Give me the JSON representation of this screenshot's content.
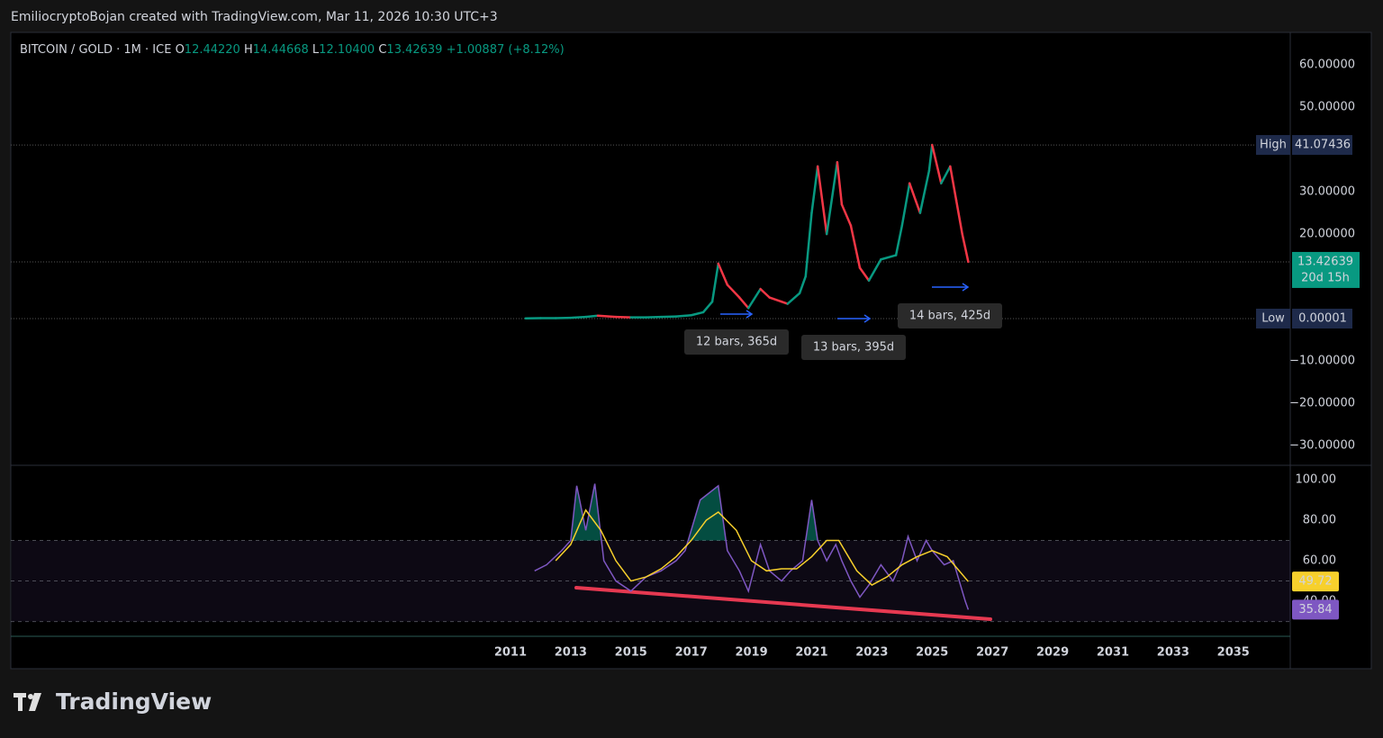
{
  "header": "EmiliocryptoBojan created with TradingView.com, Mar 11, 2026 10:30 UTC+3",
  "legend": {
    "symbol": "BITCOIN / GOLD · 1M · ICE",
    "o_label": "O",
    "open": "12.44220",
    "h_label": "H",
    "high": "14.44668",
    "l_label": "L",
    "low": "12.10400",
    "c_label": "C",
    "close": "13.42639",
    "change": "+1.00887 (+8.12%)"
  },
  "logo": "TradingView",
  "chart_data": [
    {
      "type": "line",
      "xlim": [
        1994.41,
        2036.89
      ],
      "xticks": [
        2011,
        2013,
        2015,
        2017,
        2019,
        2021,
        2023,
        2025,
        2027,
        2029,
        2031,
        2033,
        2035
      ],
      "ylim": [
        -34.7,
        67.7
      ],
      "yticks": [
        {
          "value": 60,
          "label": "60.00000"
        },
        {
          "value": 50,
          "label": "50.00000"
        },
        {
          "value": 30,
          "label": "30.00000"
        },
        {
          "value": 20,
          "label": "20.00000"
        },
        {
          "value": -10,
          "label": "−10.00000"
        },
        {
          "value": -20,
          "label": "−20.00000"
        },
        {
          "value": -30,
          "label": "−30.00000"
        }
      ],
      "up_color": "#089981",
      "down_color": "#f23645",
      "x": [
        2011.5,
        2012.0,
        2012.5,
        2013.0,
        2013.5,
        2013.9,
        2014.5,
        2015.0,
        2015.5,
        2016.0,
        2016.5,
        2017.0,
        2017.4,
        2017.7,
        2017.9,
        2018.2,
        2018.6,
        2018.9,
        2019.3,
        2019.6,
        2020.0,
        2020.2,
        2020.6,
        2020.8,
        2021.0,
        2021.2,
        2021.5,
        2021.85,
        2022.0,
        2022.3,
        2022.6,
        2022.9,
        2023.3,
        2023.8,
        2024.0,
        2024.25,
        2024.6,
        2024.9,
        2025.0,
        2025.3,
        2025.6,
        2025.8,
        2026.0,
        2026.2
      ],
      "values": [
        0.05,
        0.1,
        0.1,
        0.2,
        0.4,
        0.7,
        0.4,
        0.3,
        0.3,
        0.4,
        0.5,
        0.8,
        1.5,
        4,
        13,
        8,
        5,
        2.5,
        7,
        5,
        4,
        3.5,
        6,
        10,
        25,
        36,
        20,
        37,
        27,
        22,
        12,
        9,
        14,
        15,
        22,
        32,
        25,
        35,
        41.07436,
        32,
        36,
        28,
        20,
        13.42639
      ],
      "high": {
        "label": "High",
        "value": 41.07436
      },
      "low": {
        "label": "Low",
        "value": 1e-05
      },
      "countdown": "20d 15h",
      "annotations": [
        "12 bars, 365d",
        "13 bars, 395d",
        "14 bars, 425d"
      ]
    },
    {
      "type": "line",
      "xlim": [
        1994.41,
        2036.89
      ],
      "ylim": [
        22.7,
        107.1
      ],
      "yticks": [
        {
          "value": 100,
          "label": "100.00"
        },
        {
          "value": 80,
          "label": "80.00"
        },
        {
          "value": 60,
          "label": "60.00"
        },
        {
          "value": 40,
          "label": "40.00"
        }
      ],
      "band": [
        70,
        50,
        30
      ],
      "series": [
        {
          "color": "#7e57c2",
          "x": [
            2011.8,
            2012.2,
            2012.7,
            2013.0,
            2013.2,
            2013.5,
            2013.8,
            2014.1,
            2014.5,
            2015.0,
            2015.5,
            2016.0,
            2016.5,
            2016.8,
            2017.3,
            2017.9,
            2018.2,
            2018.6,
            2018.9,
            2019.3,
            2019.6,
            2020.0,
            2020.3,
            2020.7,
            2021.0,
            2021.2,
            2021.5,
            2021.8,
            2022.0,
            2022.3,
            2022.6,
            2022.9,
            2023.3,
            2023.7,
            2024.0,
            2024.2,
            2024.5,
            2024.8,
            2025.0,
            2025.4,
            2025.7,
            2025.9,
            2026.1,
            2026.2
          ],
          "values": [
            55,
            58,
            65,
            70,
            97,
            75,
            98,
            60,
            50,
            45,
            52,
            55,
            60,
            65,
            90,
            97,
            65,
            55,
            45,
            68,
            55,
            50,
            55,
            60,
            90,
            70,
            60,
            68,
            60,
            50,
            42,
            48,
            58,
            50,
            60,
            72,
            60,
            70,
            65,
            58,
            60,
            50,
            40,
            35.84
          ]
        },
        {
          "color": "#f7d02c",
          "x": [
            2012.5,
            2013.0,
            2013.5,
            2014.0,
            2014.5,
            2015.0,
            2015.5,
            2016.0,
            2016.5,
            2017.0,
            2017.5,
            2017.9,
            2018.5,
            2019.0,
            2019.5,
            2020.0,
            2020.5,
            2021.0,
            2021.5,
            2021.9,
            2022.5,
            2023.0,
            2023.5,
            2024.0,
            2024.5,
            2025.0,
            2025.5,
            2026.2
          ],
          "values": [
            60,
            68,
            85,
            75,
            60,
            50,
            52,
            56,
            62,
            70,
            80,
            84,
            75,
            60,
            55,
            56,
            56,
            62,
            70,
            70,
            55,
            48,
            52,
            58,
            62,
            65,
            62,
            49.72
          ]
        }
      ]
    }
  ]
}
